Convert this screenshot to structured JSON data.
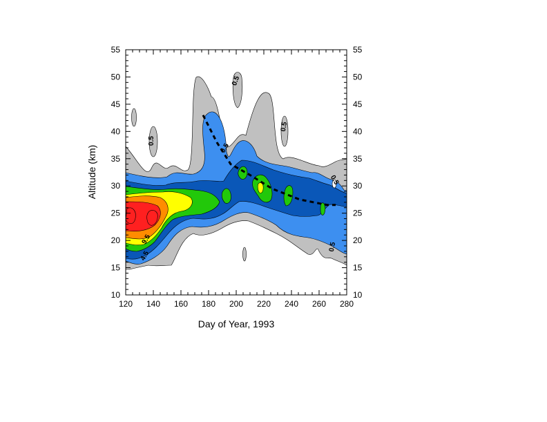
{
  "chart_data": {
    "type": "heatmap",
    "title": "",
    "xlabel": "Day of Year, 1993",
    "ylabel": "Altitude (km)",
    "xlim": [
      120,
      280
    ],
    "ylim": [
      10,
      55
    ],
    "x_ticks": [
      120,
      140,
      160,
      180,
      200,
      220,
      240,
      260,
      280
    ],
    "y_ticks": [
      10,
      15,
      20,
      25,
      30,
      35,
      40,
      45,
      50,
      55
    ],
    "right_axis_mirrored": true,
    "grid": false,
    "legend": "none",
    "contour_labels": [
      "0.5",
      "0.5",
      "0.5",
      "0.5",
      "0.5",
      "0.5",
      "4.5",
      "9.5"
    ],
    "levels": [
      {
        "color": "#c0c0c0"
      },
      {
        "color": "#3d8ff0"
      },
      {
        "color": "#0a57b8"
      },
      {
        "color": "#22c80a"
      },
      {
        "color": "#ffff00"
      },
      {
        "color": "#ff8c00"
      },
      {
        "color": "#ff2020"
      }
    ],
    "dashed_trend_line": [
      {
        "x": 176,
        "y": 43
      },
      {
        "x": 186,
        "y": 38
      },
      {
        "x": 196,
        "y": 34
      },
      {
        "x": 210,
        "y": 32
      },
      {
        "x": 226,
        "y": 29.5
      },
      {
        "x": 246,
        "y": 27.5
      },
      {
        "x": 266,
        "y": 26.5
      },
      {
        "x": 272,
        "y": 26.5
      }
    ]
  }
}
